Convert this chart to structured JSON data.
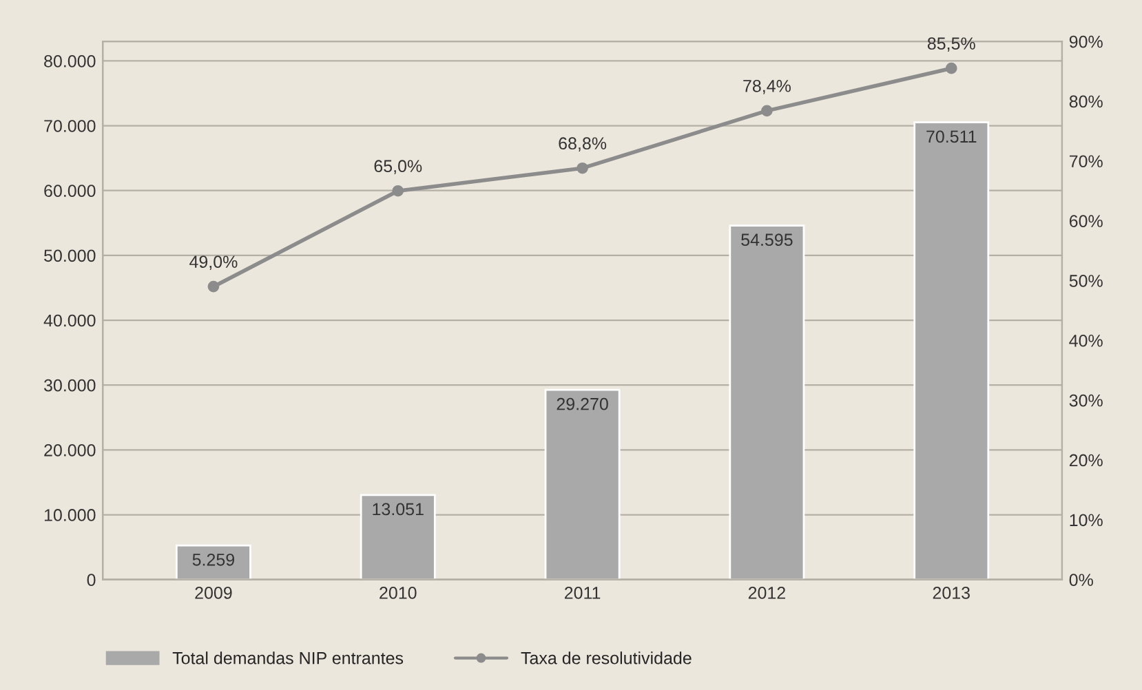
{
  "chart_data": {
    "type": "bar",
    "categories": [
      "2009",
      "2010",
      "2011",
      "2012",
      "2013"
    ],
    "series": [
      {
        "name": "Total demandas NIP entrantes",
        "color": "#a9a9a9",
        "values": [
          5259,
          13051,
          29270,
          54595,
          70511
        ],
        "value_labels": [
          "5.259",
          "13.051",
          "29.270",
          "54.595",
          "70.511"
        ]
      },
      {
        "name": "Taxa de resolutividade",
        "type": "line",
        "axis": "y2",
        "color": "#8c8c8c",
        "marker": "circle",
        "values": [
          49.0,
          65.0,
          68.8,
          78.4,
          85.5
        ],
        "value_labels": [
          "49,0%",
          "65,0%",
          "68,8%",
          "78,4%",
          "85,5%"
        ]
      }
    ],
    "ylim": [
      0,
      83000
    ],
    "yticks": [
      {
        "value": 0,
        "label": "0"
      },
      {
        "value": 10000,
        "label": "10.000"
      },
      {
        "value": 20000,
        "label": "20.000"
      },
      {
        "value": 30000,
        "label": "30.000"
      },
      {
        "value": 40000,
        "label": "40.000"
      },
      {
        "value": 50000,
        "label": "50.000"
      },
      {
        "value": 60000,
        "label": "60.000"
      },
      {
        "value": 70000,
        "label": "70.000"
      },
      {
        "value": 80000,
        "label": "80.000"
      }
    ],
    "y2lim": [
      0,
      90
    ],
    "y2ticks": [
      {
        "value": 0,
        "label": "0%"
      },
      {
        "value": 10,
        "label": "10%"
      },
      {
        "value": 20,
        "label": "20%"
      },
      {
        "value": 30,
        "label": "30%"
      },
      {
        "value": 40,
        "label": "40%"
      },
      {
        "value": 50,
        "label": "50%"
      },
      {
        "value": 60,
        "label": "60%"
      },
      {
        "value": 70,
        "label": "70%"
      },
      {
        "value": 80,
        "label": "80%"
      },
      {
        "value": 90,
        "label": "90%"
      }
    ],
    "grid": "y",
    "legend": "bottom"
  }
}
